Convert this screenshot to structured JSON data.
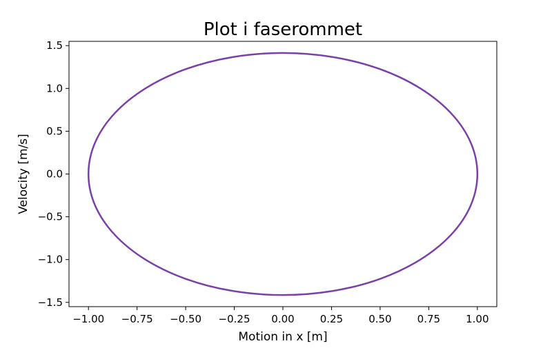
{
  "chart_data": {
    "type": "line",
    "title": "Plot i faserommet",
    "xlabel": "Motion in x [m]",
    "ylabel": "Velocity [m/s]",
    "xlim": [
      -1.1,
      1.1
    ],
    "ylim": [
      -1.55,
      1.55
    ],
    "xticks": [
      -1.0,
      -0.75,
      -0.5,
      -0.25,
      0.0,
      0.25,
      0.5,
      0.75,
      1.0
    ],
    "xtick_labels": [
      "−1.00",
      "−0.75",
      "−0.50",
      "−0.25",
      "0.00",
      "0.25",
      "0.50",
      "0.75",
      "1.00"
    ],
    "yticks": [
      -1.5,
      -1.0,
      -0.5,
      0.0,
      0.5,
      1.0,
      1.5
    ],
    "ytick_labels": [
      "−1.5",
      "−1.0",
      "−0.5",
      "0.0",
      "0.5",
      "1.0",
      "1.5"
    ],
    "grid": false,
    "series": [
      {
        "color": "#7b3fa8",
        "x": [
          1.0,
          0.966,
          0.866,
          0.707,
          0.5,
          0.259,
          0.0,
          -0.259,
          -0.5,
          -0.707,
          -0.866,
          -0.966,
          -1.0,
          -0.966,
          -0.866,
          -0.707,
          -0.5,
          -0.259,
          0.0,
          0.259,
          0.5,
          0.707,
          0.866,
          0.966,
          1.0
        ],
        "y": [
          0.0,
          0.366,
          0.707,
          1.0,
          1.225,
          1.366,
          1.414,
          1.366,
          1.225,
          1.0,
          0.707,
          0.366,
          0.0,
          -0.366,
          -0.707,
          -1.0,
          -1.225,
          -1.366,
          -1.414,
          -1.366,
          -1.225,
          -1.0,
          -0.707,
          -0.366,
          0.0
        ]
      }
    ]
  }
}
